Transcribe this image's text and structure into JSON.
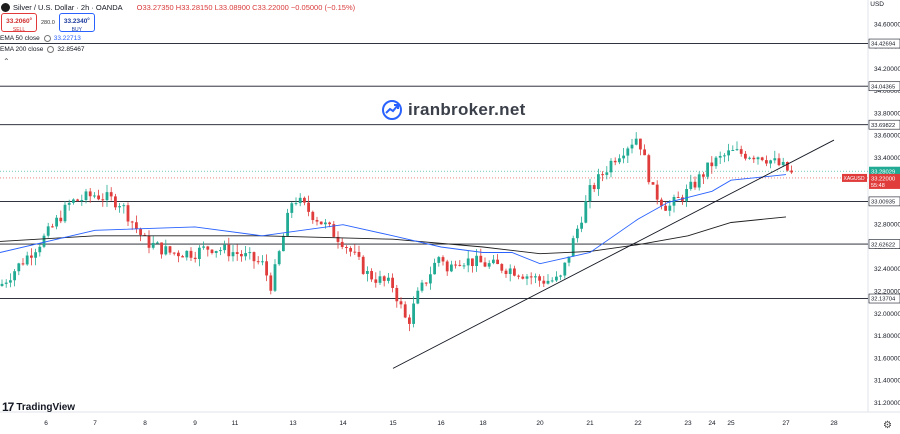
{
  "header": {
    "symbol": "Silver / U.S. Dollar · 2h · OANDA",
    "ohlc": "O33.27350 H33.28150 L33.08900 C33.22000 −0.05000 (−0.15%)"
  },
  "trade": {
    "sell_price": "33.2060",
    "sell_sup": "0",
    "sell_label": "SELL",
    "spread": "280.0",
    "buy_price": "33.2340",
    "buy_sup": "0",
    "buy_label": "BUY"
  },
  "indicators": [
    {
      "label": "EMA 50 close",
      "value": "33.22713",
      "color": "#2962ff"
    },
    {
      "label": "EMA 200 close",
      "value": "32.85467",
      "color": "#1e1e1e"
    }
  ],
  "collapse_icon": "chevron-up-icon",
  "currency": "USD",
  "watermark": {
    "text": "iranbroker.net",
    "icon": "rising-arrow-icon"
  },
  "branding": {
    "text": "TradingView",
    "logo": "tv-logo-icon"
  },
  "settings_icon": "gear-icon",
  "colors": {
    "up": "#22ab94",
    "down": "#e03c3c",
    "ema50": "#2962ff",
    "ema200": "#1e1e1e",
    "levels": "#131722"
  },
  "chart_data": {
    "type": "candlestick",
    "y_axis": {
      "ticks": [
        "34.60000",
        "34.40000",
        "34.20000",
        "34.00000",
        "33.80000",
        "33.60000",
        "33.40000",
        "33.20000",
        "33.00000",
        "32.80000",
        "32.60000",
        "32.40000",
        "32.20000",
        "32.00000",
        "31.80000",
        "31.60000",
        "31.40000",
        "31.20000"
      ],
      "range": [
        31.1,
        34.8
      ]
    },
    "x_axis": {
      "ticks": [
        "6",
        "7",
        "8",
        "9",
        "11",
        "13",
        "14",
        "15",
        "16",
        "18",
        "20",
        "21",
        "22",
        "23",
        "24",
        "25",
        "27",
        "28"
      ]
    },
    "horizontal_levels": [
      {
        "label": "34.42694",
        "value": 34.42694
      },
      {
        "label": "34.04365",
        "value": 34.04365
      },
      {
        "label": "33.69822",
        "value": 33.69822
      },
      {
        "label": "33.00935",
        "value": 33.00935
      },
      {
        "label": "32.62622",
        "value": 32.62622
      },
      {
        "label": "32.13704",
        "value": 32.13704
      }
    ],
    "price_labels": [
      {
        "label": "33.28029",
        "value": 33.28029,
        "color": "#22ab94"
      },
      {
        "label": "33.22000",
        "sub": "55:48",
        "value": 33.22,
        "color": "#e03c3c"
      },
      {
        "label": "33.22713",
        "value": 33.22713,
        "color": "#2962ff"
      }
    ],
    "symbol_tag": "XAGUSD",
    "trendline": {
      "from": [
        "15",
        31.51
      ],
      "to": [
        "28",
        33.56
      ]
    },
    "price_path": [
      [
        "5",
        32.25
      ],
      [
        "6",
        32.7
      ],
      [
        "6.5",
        33.0
      ],
      [
        "7",
        33.07
      ],
      [
        "7.5",
        33.0
      ],
      [
        "8",
        32.65
      ],
      [
        "8.5",
        32.55
      ],
      [
        "9",
        32.55
      ],
      [
        "10",
        32.6
      ],
      [
        "11",
        32.55
      ],
      [
        "12",
        32.45
      ],
      [
        "12.3",
        32.25
      ],
      [
        "13",
        33.05
      ],
      [
        "13.5",
        32.85
      ],
      [
        "14",
        32.65
      ],
      [
        "14.5",
        32.35
      ],
      [
        "15",
        32.25
      ],
      [
        "15.3",
        31.9
      ],
      [
        "15.5",
        32.15
      ],
      [
        "16",
        32.55
      ],
      [
        "16.5",
        32.35
      ],
      [
        "17",
        32.5
      ],
      [
        "18",
        32.45
      ],
      [
        "19",
        32.4
      ],
      [
        "20",
        32.3
      ],
      [
        "20.4",
        32.3
      ],
      [
        "21",
        33.1
      ],
      [
        "21.5",
        33.4
      ],
      [
        "22",
        33.6
      ],
      [
        "22.3",
        33.1
      ],
      [
        "22.6",
        32.95
      ],
      [
        "23",
        33.1
      ],
      [
        "24",
        33.35
      ],
      [
        "25",
        33.45
      ],
      [
        "26",
        33.42
      ],
      [
        "27",
        33.3
      ],
      [
        "27.2",
        33.22
      ]
    ],
    "ema50": [
      [
        "5",
        32.55
      ],
      [
        "7",
        32.75
      ],
      [
        "9",
        32.78
      ],
      [
        "12",
        32.7
      ],
      [
        "14",
        32.8
      ],
      [
        "15",
        32.7
      ],
      [
        "16",
        32.6
      ],
      [
        "18",
        32.55
      ],
      [
        "19",
        32.55
      ],
      [
        "20",
        32.45
      ],
      [
        "21",
        32.55
      ],
      [
        "22",
        32.85
      ],
      [
        "22.6",
        33.0
      ],
      [
        "24",
        33.1
      ],
      [
        "25",
        33.2
      ],
      [
        "27",
        33.25
      ]
    ],
    "ema200": [
      [
        "5",
        32.65
      ],
      [
        "7",
        32.7
      ],
      [
        "9",
        32.7
      ],
      [
        "12",
        32.7
      ],
      [
        "15",
        32.67
      ],
      [
        "18",
        32.6
      ],
      [
        "20",
        32.54
      ],
      [
        "21",
        32.56
      ],
      [
        "22",
        32.62
      ],
      [
        "23",
        32.7
      ],
      [
        "25",
        32.82
      ],
      [
        "27",
        32.87
      ]
    ]
  }
}
